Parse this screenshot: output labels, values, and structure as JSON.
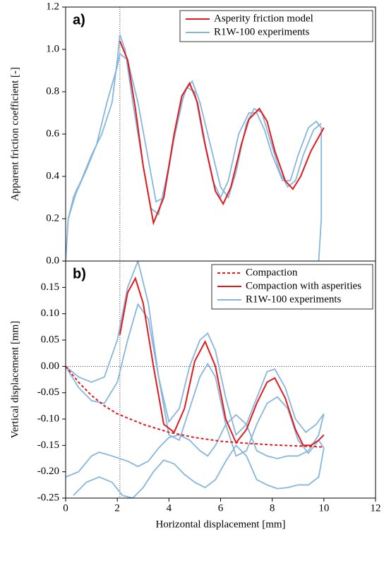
{
  "chart_data": [
    {
      "type": "line",
      "annotation": "a)",
      "ylabel": "Apparent friction coefficient [-]",
      "xlim": [
        0,
        12
      ],
      "ylim": [
        0,
        1.2
      ],
      "yticks": [
        {
          "value": 0,
          "label": "0.0"
        },
        0.2,
        0.4,
        0.6,
        0.8,
        {
          "value": 1,
          "label": "1.0"
        },
        1.2
      ],
      "vline": 2.1,
      "legend": "upper right",
      "series": [
        {
          "name": "Asperity friction model",
          "color": "#e31a1c",
          "curves": [
            {
              "x": [
                2.1,
                2.4,
                2.7,
                3.0,
                3.4,
                3.8,
                4.2,
                4.5,
                4.8,
                5.1,
                5.4,
                5.8,
                6.1,
                6.4,
                6.8,
                7.1,
                7.5,
                7.8,
                8.1,
                8.5,
                8.8,
                9.1,
                9.5,
                10.0
              ],
              "values": [
                1.04,
                0.95,
                0.72,
                0.45,
                0.18,
                0.3,
                0.6,
                0.78,
                0.84,
                0.75,
                0.55,
                0.33,
                0.27,
                0.35,
                0.55,
                0.67,
                0.72,
                0.66,
                0.52,
                0.38,
                0.34,
                0.4,
                0.52,
                0.63
              ]
            }
          ]
        },
        {
          "name": "R1W-100 experiments",
          "color": "#86b6de",
          "curves": [
            {
              "x": [
                0,
                0.1,
                0.3,
                0.4,
                0.6,
                1.0,
                1.4,
                1.8,
                2.0,
                2.1,
                2.3,
                2.6,
                3.0,
                3.3,
                3.6,
                4.0,
                4.4,
                4.7,
                5.0,
                5.3,
                5.7,
                6.0,
                6.3,
                6.7,
                7.1,
                7.4,
                7.7,
                8.0,
                8.4,
                8.7,
                9.0,
                9.4,
                9.7,
                9.9,
                9.9,
                9.8
              ],
              "values": [
                0,
                0.2,
                0.3,
                0.33,
                0.38,
                0.5,
                0.6,
                0.75,
                0.95,
                1.07,
                1.0,
                0.75,
                0.45,
                0.25,
                0.22,
                0.45,
                0.72,
                0.82,
                0.8,
                0.6,
                0.38,
                0.3,
                0.38,
                0.6,
                0.7,
                0.7,
                0.62,
                0.5,
                0.38,
                0.38,
                0.5,
                0.63,
                0.66,
                0.63,
                0.2,
                0
              ]
            },
            {
              "x": [
                0.1,
                0.4,
                0.8,
                1.2,
                1.6,
                2.0,
                2.1,
                2.4,
                2.8,
                3.2,
                3.5,
                3.8,
                4.2,
                4.6,
                4.9,
                5.2,
                5.6,
                6.0,
                6.3,
                6.6,
                7.0,
                7.3,
                7.6,
                7.9,
                8.3,
                8.6,
                8.9,
                9.2,
                9.6,
                9.9
              ],
              "values": [
                0.2,
                0.32,
                0.43,
                0.55,
                0.75,
                0.92,
                0.98,
                0.95,
                0.75,
                0.48,
                0.28,
                0.3,
                0.58,
                0.8,
                0.85,
                0.75,
                0.55,
                0.35,
                0.3,
                0.42,
                0.65,
                0.72,
                0.7,
                0.58,
                0.42,
                0.35,
                0.38,
                0.5,
                0.62,
                0.65
              ]
            }
          ]
        }
      ]
    },
    {
      "type": "line",
      "annotation": "b)",
      "ylabel": "Vertical displacement [mm]",
      "xlabel": "Horizontal displacement [mm]",
      "xlim": [
        0,
        12
      ],
      "xticks": [
        0,
        2,
        4,
        6,
        8,
        10,
        12
      ],
      "ylim": [
        -0.25,
        0.2
      ],
      "yticks": [
        0.15,
        {
          "value": 0.1,
          "label": "0.10"
        },
        0.05,
        {
          "value": 0,
          "label": "0.00"
        },
        -0.05,
        {
          "value": -0.1,
          "label": "-0.10"
        },
        -0.15,
        {
          "value": -0.2,
          "label": "-0.20"
        },
        -0.25
      ],
      "vline": 2.1,
      "hline": 0,
      "legend": "upper right",
      "series": [
        {
          "name": "Compaction",
          "color": "#e31a1c",
          "dashed": true,
          "curves": [
            {
              "x": [
                0,
                0.5,
                1,
                1.5,
                2,
                3,
                4,
                5,
                6,
                7,
                8,
                9,
                10
              ],
              "values": [
                0,
                -0.03,
                -0.055,
                -0.075,
                -0.09,
                -0.11,
                -0.125,
                -0.135,
                -0.142,
                -0.146,
                -0.149,
                -0.151,
                -0.153
              ]
            }
          ]
        },
        {
          "name": "Compaction with asperities",
          "color": "#e31a1c",
          "curves": [
            {
              "x": [
                2.1,
                2.4,
                2.7,
                3.0,
                3.4,
                3.8,
                4.2,
                4.6,
                5.0,
                5.4,
                5.8,
                6.2,
                6.6,
                7.0,
                7.4,
                7.8,
                8.1,
                8.5,
                8.9,
                9.2,
                9.5,
                9.8,
                10.0
              ],
              "values": [
                0.06,
                0.14,
                0.167,
                0.12,
                0.0,
                -0.11,
                -0.125,
                -0.08,
                0.01,
                0.047,
                0.0,
                -0.1,
                -0.145,
                -0.12,
                -0.07,
                -0.03,
                -0.022,
                -0.06,
                -0.12,
                -0.15,
                -0.15,
                -0.14,
                -0.13
              ]
            }
          ]
        },
        {
          "name": "R1W-100 experiments",
          "color": "#86b6de",
          "curves": [
            {
              "x": [
                0,
                0.5,
                1,
                1.5,
                2,
                2.4,
                2.8,
                3.2,
                3.6,
                4.0,
                4.4,
                4.8,
                5.2,
                5.5,
                5.8,
                6.2,
                6.6,
                7.0,
                7.4,
                7.8,
                8.1,
                8.5,
                8.9,
                9.3,
                9.7,
                10
              ],
              "values": [
                0,
                -0.02,
                -0.03,
                -0.02,
                0.05,
                0.15,
                0.2,
                0.12,
                -0.02,
                -0.105,
                -0.08,
                0.0,
                0.05,
                0.063,
                0.03,
                -0.06,
                -0.13,
                -0.11,
                -0.06,
                -0.01,
                -0.005,
                -0.04,
                -0.1,
                -0.125,
                -0.11,
                -0.09
              ]
            },
            {
              "x": [
                0,
                0.5,
                1,
                1.5,
                2,
                2.4,
                2.8,
                3.2,
                3.6,
                4.0,
                4.4,
                4.8,
                5.2,
                5.5,
                5.8,
                6.2,
                6.6,
                7.0,
                7.4,
                7.8,
                8.2,
                8.6,
                9.0,
                9.4,
                9.8,
                10
              ],
              "values": [
                0,
                -0.04,
                -0.065,
                -0.07,
                -0.03,
                0.05,
                0.118,
                0.09,
                -0.02,
                -0.13,
                -0.14,
                -0.08,
                -0.02,
                0.005,
                -0.02,
                -0.11,
                -0.17,
                -0.16,
                -0.11,
                -0.07,
                -0.058,
                -0.08,
                -0.14,
                -0.165,
                -0.14,
                -0.155
              ]
            },
            {
              "x": [
                0,
                0.5,
                1,
                1.3,
                1.8,
                2.4,
                2.8,
                3.2,
                3.6,
                4.0,
                4.4,
                4.8,
                5.2,
                5.5,
                5.8,
                6.2,
                6.6,
                7.0,
                7.4,
                7.8,
                8.2,
                8.6,
                9.0,
                9.4,
                9.8,
                10
              ],
              "values": [
                -0.21,
                -0.2,
                -0.17,
                -0.163,
                -0.17,
                -0.18,
                -0.19,
                -0.18,
                -0.155,
                -0.135,
                -0.13,
                -0.14,
                -0.16,
                -0.17,
                -0.15,
                -0.11,
                -0.092,
                -0.11,
                -0.16,
                -0.17,
                -0.175,
                -0.17,
                -0.17,
                -0.16,
                -0.13,
                -0.09
              ]
            },
            {
              "x": [
                0.3,
                0.8,
                1.3,
                1.8,
                2.2,
                2.6,
                3.0,
                3.4,
                3.8,
                4.2,
                4.6,
                5.0,
                5.4,
                5.8,
                6.2,
                6.6,
                7.0,
                7.4,
                7.8,
                8.2,
                8.6,
                9.0,
                9.4,
                9.8,
                10
              ],
              "values": [
                -0.245,
                -0.22,
                -0.21,
                -0.22,
                -0.245,
                -0.25,
                -0.23,
                -0.2,
                -0.178,
                -0.185,
                -0.205,
                -0.22,
                -0.23,
                -0.215,
                -0.18,
                -0.15,
                -0.17,
                -0.215,
                -0.225,
                -0.232,
                -0.23,
                -0.225,
                -0.225,
                -0.21,
                -0.155
              ]
            }
          ]
        }
      ]
    }
  ]
}
